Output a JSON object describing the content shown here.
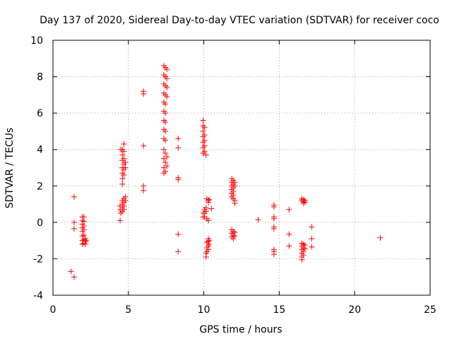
{
  "chart_data": {
    "type": "scatter",
    "title": "Day 137 of 2020, Sidereal Day-to-day VTEC variation (SDTVAR) for receiver coco",
    "xlabel": "GPS time / hours",
    "ylabel": "SDTVAR / TECUs",
    "xlim": [
      0,
      25
    ],
    "ylim": [
      -4,
      10
    ],
    "xticks": [
      0,
      5,
      10,
      15,
      20,
      25
    ],
    "yticks": [
      -4,
      -2,
      0,
      2,
      4,
      6,
      8,
      10
    ],
    "grid": true,
    "marker": "+",
    "color": "#ff0000",
    "series": [
      {
        "name": "SDTVAR",
        "points": [
          [
            1.2,
            -2.7
          ],
          [
            1.4,
            -3.0
          ],
          [
            1.4,
            1.4
          ],
          [
            1.4,
            0.0
          ],
          [
            1.4,
            -0.35
          ],
          [
            1.95,
            0.3
          ],
          [
            1.95,
            0.1
          ],
          [
            1.95,
            -0.1
          ],
          [
            1.95,
            -0.3
          ],
          [
            1.95,
            -0.5
          ],
          [
            1.95,
            -0.75
          ],
          [
            1.95,
            -1.0
          ],
          [
            1.95,
            -1.2
          ],
          [
            2.05,
            0.3
          ],
          [
            2.05,
            0.05
          ],
          [
            2.05,
            -0.2
          ],
          [
            2.05,
            -0.4
          ],
          [
            2.05,
            -0.7
          ],
          [
            2.05,
            -0.95
          ],
          [
            2.05,
            -1.15
          ],
          [
            2.15,
            -0.9
          ],
          [
            2.15,
            -1.05
          ],
          [
            2.15,
            -1.2
          ],
          [
            2.2,
            -1.0
          ],
          [
            4.45,
            0.1
          ],
          [
            4.45,
            0.7
          ],
          [
            4.45,
            0.9
          ],
          [
            4.5,
            4.0
          ],
          [
            4.5,
            0.5
          ],
          [
            4.6,
            4.0
          ],
          [
            4.6,
            3.7
          ],
          [
            4.6,
            3.4
          ],
          [
            4.6,
            3.0
          ],
          [
            4.6,
            2.7
          ],
          [
            4.6,
            2.4
          ],
          [
            4.6,
            2.1
          ],
          [
            4.6,
            1.2
          ],
          [
            4.6,
            1.0
          ],
          [
            4.6,
            0.8
          ],
          [
            4.6,
            0.6
          ],
          [
            4.7,
            4.3
          ],
          [
            4.7,
            3.9
          ],
          [
            4.7,
            3.5
          ],
          [
            4.7,
            3.2
          ],
          [
            4.7,
            2.9
          ],
          [
            4.7,
            2.6
          ],
          [
            4.7,
            1.3
          ],
          [
            4.7,
            1.1
          ],
          [
            4.7,
            0.9
          ],
          [
            4.7,
            0.7
          ],
          [
            4.8,
            3.3
          ],
          [
            4.8,
            3.0
          ],
          [
            4.8,
            1.4
          ],
          [
            4.8,
            1.2
          ],
          [
            6.0,
            7.2
          ],
          [
            6.0,
            7.05
          ],
          [
            6.0,
            4.2
          ],
          [
            6.0,
            2.0
          ],
          [
            6.0,
            1.75
          ],
          [
            7.35,
            8.6
          ],
          [
            7.35,
            8.1
          ],
          [
            7.35,
            7.6
          ],
          [
            7.35,
            7.1
          ],
          [
            7.35,
            6.6
          ],
          [
            7.35,
            6.1
          ],
          [
            7.35,
            5.6
          ],
          [
            7.35,
            5.1
          ],
          [
            7.35,
            4.6
          ],
          [
            7.35,
            4.0
          ],
          [
            7.35,
            3.5
          ],
          [
            7.35,
            3.0
          ],
          [
            7.35,
            2.7
          ],
          [
            7.45,
            8.5
          ],
          [
            7.45,
            8.0
          ],
          [
            7.45,
            7.5
          ],
          [
            7.45,
            7.0
          ],
          [
            7.45,
            6.5
          ],
          [
            7.45,
            6.0
          ],
          [
            7.45,
            5.5
          ],
          [
            7.45,
            5.0
          ],
          [
            7.45,
            4.5
          ],
          [
            7.45,
            3.8
          ],
          [
            7.45,
            3.3
          ],
          [
            7.45,
            2.8
          ],
          [
            7.55,
            8.4
          ],
          [
            7.55,
            7.9
          ],
          [
            7.55,
            7.4
          ],
          [
            7.55,
            6.9
          ],
          [
            7.55,
            3.6
          ],
          [
            7.55,
            3.1
          ],
          [
            8.3,
            4.6
          ],
          [
            8.3,
            4.1
          ],
          [
            8.3,
            2.45
          ],
          [
            8.3,
            2.35
          ],
          [
            8.3,
            -0.65
          ],
          [
            8.3,
            -1.6
          ],
          [
            9.95,
            5.6
          ],
          [
            9.95,
            5.3
          ],
          [
            9.95,
            5.0
          ],
          [
            9.95,
            4.7
          ],
          [
            9.95,
            4.4
          ],
          [
            9.95,
            4.1
          ],
          [
            9.95,
            3.8
          ],
          [
            9.95,
            0.5
          ],
          [
            9.95,
            0.3
          ],
          [
            10.05,
            5.2
          ],
          [
            10.05,
            4.8
          ],
          [
            10.05,
            4.5
          ],
          [
            10.05,
            4.2
          ],
          [
            10.05,
            3.9
          ],
          [
            10.05,
            0.7
          ],
          [
            10.05,
            0.5
          ],
          [
            10.05,
            0.3
          ],
          [
            10.15,
            3.7
          ],
          [
            10.15,
            0.8
          ],
          [
            10.15,
            0.6
          ],
          [
            10.15,
            -1.7
          ],
          [
            10.15,
            -1.9
          ],
          [
            10.2,
            1.3
          ],
          [
            10.2,
            0.2
          ],
          [
            10.2,
            -1.1
          ],
          [
            10.2,
            -1.4
          ],
          [
            10.2,
            -1.6
          ],
          [
            10.3,
            1.2
          ],
          [
            10.3,
            1.1
          ],
          [
            10.3,
            0.1
          ],
          [
            10.3,
            -0.9
          ],
          [
            10.3,
            -1.05
          ],
          [
            10.3,
            -1.3
          ],
          [
            10.3,
            -1.5
          ],
          [
            10.35,
            1.25
          ],
          [
            10.35,
            -1.0
          ],
          [
            10.35,
            -1.2
          ],
          [
            10.5,
            0.75
          ],
          [
            11.85,
            2.4
          ],
          [
            11.85,
            2.2
          ],
          [
            11.85,
            2.0
          ],
          [
            11.85,
            1.8
          ],
          [
            11.85,
            1.6
          ],
          [
            11.85,
            1.4
          ],
          [
            11.85,
            -0.4
          ],
          [
            11.85,
            -0.6
          ],
          [
            11.85,
            -0.8
          ],
          [
            11.95,
            2.3
          ],
          [
            11.95,
            2.1
          ],
          [
            11.95,
            1.9
          ],
          [
            11.95,
            1.7
          ],
          [
            11.95,
            1.5
          ],
          [
            11.95,
            1.3
          ],
          [
            11.95,
            -0.5
          ],
          [
            11.95,
            -0.7
          ],
          [
            11.95,
            -0.9
          ],
          [
            12.05,
            2.2
          ],
          [
            12.05,
            2.0
          ],
          [
            12.05,
            1.2
          ],
          [
            12.05,
            1.05
          ],
          [
            12.05,
            -0.55
          ],
          [
            12.05,
            -0.75
          ],
          [
            13.6,
            0.15
          ],
          [
            14.65,
            0.95
          ],
          [
            14.65,
            0.85
          ],
          [
            14.65,
            0.3
          ],
          [
            14.65,
            0.2
          ],
          [
            14.65,
            -0.25
          ],
          [
            14.65,
            -0.35
          ],
          [
            14.65,
            -1.5
          ],
          [
            14.65,
            -1.6
          ],
          [
            14.65,
            -1.75
          ],
          [
            15.65,
            0.7
          ],
          [
            15.65,
            -0.65
          ],
          [
            15.65,
            -1.3
          ],
          [
            16.5,
            1.3
          ],
          [
            16.5,
            1.2
          ],
          [
            16.5,
            -1.15
          ],
          [
            16.5,
            -1.3
          ],
          [
            16.5,
            -1.5
          ],
          [
            16.5,
            -1.7
          ],
          [
            16.5,
            -1.9
          ],
          [
            16.5,
            -2.05
          ],
          [
            16.6,
            1.25
          ],
          [
            16.6,
            1.15
          ],
          [
            16.6,
            1.05
          ],
          [
            16.6,
            -1.2
          ],
          [
            16.6,
            -1.4
          ],
          [
            16.6,
            -1.6
          ],
          [
            16.6,
            -1.8
          ],
          [
            16.7,
            1.2
          ],
          [
            16.7,
            1.1
          ],
          [
            16.7,
            -1.25
          ],
          [
            16.7,
            -1.45
          ],
          [
            17.15,
            -0.25
          ],
          [
            17.15,
            -0.9
          ],
          [
            17.15,
            -1.35
          ],
          [
            21.7,
            -0.85
          ]
        ]
      }
    ]
  }
}
